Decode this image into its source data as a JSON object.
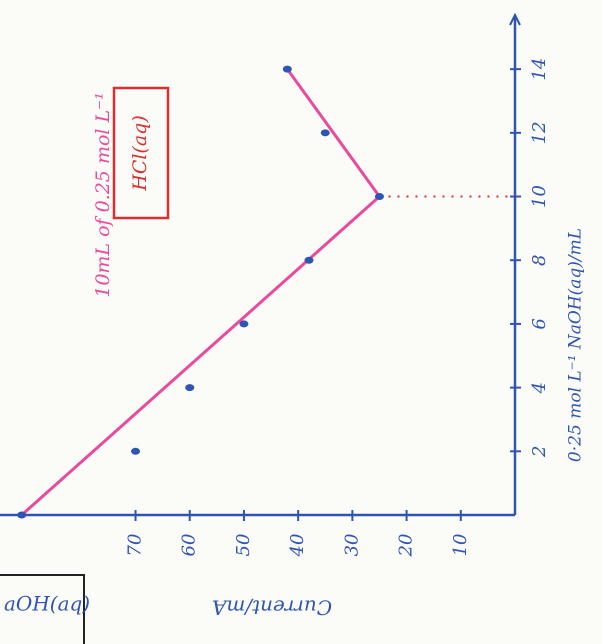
{
  "chart_data": {
    "type": "scatter",
    "annotation": "10mL of 0.25 mol L⁻¹",
    "boxed_annotation": "HCl(aq)",
    "corner_label": "aOH(aq)",
    "x_label": "0·25 mol L⁻¹ NaOH(aq)/mL",
    "y_label": "Current/mA",
    "x": [
      0,
      2,
      4,
      6,
      8,
      10,
      12,
      14
    ],
    "values": [
      91,
      70,
      60,
      50,
      38,
      25,
      35,
      42
    ],
    "color": "#2f55b4",
    "fit_line": {
      "x": [
        0,
        10,
        14
      ],
      "values": [
        91,
        25,
        42
      ],
      "color": "#ea4a9c"
    },
    "xlim": [
      0,
      15.7
    ],
    "xticks": [
      2,
      4,
      6,
      8,
      10,
      12,
      14
    ],
    "ylim": [
      0,
      95
    ],
    "yticks": [
      10,
      20,
      30,
      40,
      50,
      60,
      70
    ],
    "axis_color": "#2f55b4"
  }
}
